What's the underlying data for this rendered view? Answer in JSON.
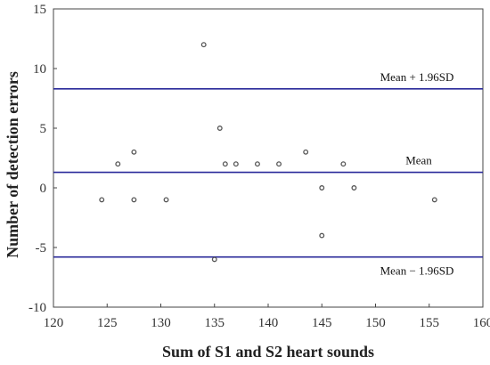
{
  "chart_data": {
    "type": "scatter",
    "xlabel": "Sum of S1 and S2 heart sounds",
    "ylabel": "Number of detection errors",
    "xlim": [
      120,
      160
    ],
    "ylim": [
      -10,
      15
    ],
    "x_ticks": [
      "120",
      "125",
      "130",
      "135",
      "140",
      "145",
      "150",
      "155",
      "160"
    ],
    "y_ticks": [
      "15",
      "10",
      "5",
      "0",
      "-5",
      "-10"
    ],
    "grid": false,
    "points": [
      {
        "x": 124.5,
        "y": -1
      },
      {
        "x": 126,
        "y": 2
      },
      {
        "x": 127.5,
        "y": 3
      },
      {
        "x": 127.5,
        "y": -1
      },
      {
        "x": 130.5,
        "y": -1
      },
      {
        "x": 134,
        "y": 12
      },
      {
        "x": 135,
        "y": -6
      },
      {
        "x": 135.5,
        "y": 5
      },
      {
        "x": 136,
        "y": 2
      },
      {
        "x": 137,
        "y": 2
      },
      {
        "x": 139,
        "y": 2
      },
      {
        "x": 141,
        "y": 2
      },
      {
        "x": 143.5,
        "y": 3
      },
      {
        "x": 145,
        "y": 0
      },
      {
        "x": 145,
        "y": -4
      },
      {
        "x": 147,
        "y": 2
      },
      {
        "x": 148,
        "y": 0
      },
      {
        "x": 155.5,
        "y": -1
      }
    ],
    "reference_lines": [
      {
        "label": "Mean + 1.96SD",
        "y": 8.3
      },
      {
        "label": "Mean",
        "y": 1.3
      },
      {
        "label": "Mean − 1.96SD",
        "y": -5.8
      }
    ],
    "colors": {
      "reference_line": "#2a2a9a",
      "marker_edge": "#555555"
    }
  }
}
